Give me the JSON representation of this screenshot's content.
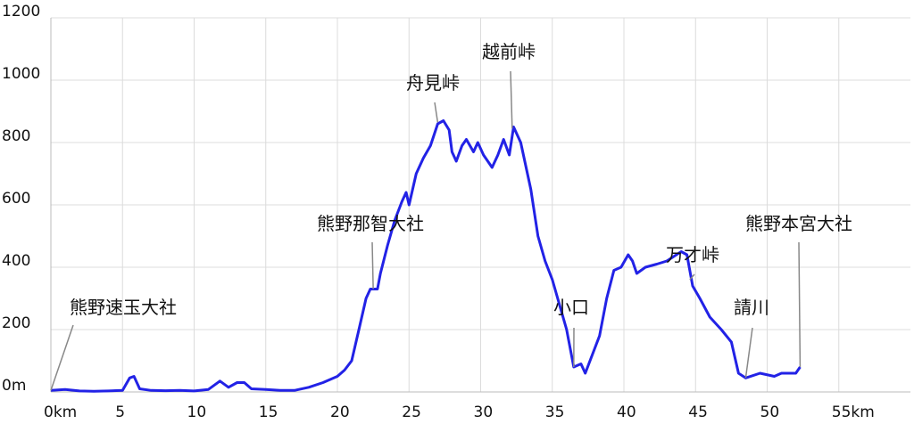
{
  "chart_data": {
    "type": "line",
    "x": [
      0,
      1,
      2,
      3,
      4,
      5,
      5.5,
      5.8,
      6.2,
      7,
      8,
      9,
      10,
      11,
      11.8,
      12.4,
      13,
      13.5,
      14,
      15,
      16,
      17,
      18,
      19,
      20,
      20.5,
      21,
      21.5,
      22,
      22.3,
      22.8,
      23,
      23.5,
      24,
      24.5,
      24.8,
      25,
      25.5,
      26,
      26.5,
      27,
      27.4,
      27.8,
      28,
      28.3,
      28.7,
      29,
      29.5,
      29.8,
      30.2,
      30.8,
      31.2,
      31.6,
      32,
      32.3,
      32.8,
      33.5,
      34,
      34.5,
      35,
      35.5,
      36,
      36.5,
      37,
      37.3,
      37.8,
      38.3,
      38.8,
      39.3,
      39.8,
      40.3,
      40.6,
      40.9,
      41.5,
      42.3,
      43,
      44,
      44.4,
      44.8,
      45.3,
      46,
      46.8,
      47.5,
      48,
      48.5,
      49.5,
      50.5,
      51,
      52,
      52.3
    ],
    "series": [
      {
        "color": "#2222e6",
        "values": [
          5,
          8,
          3,
          2,
          3,
          5,
          45,
          50,
          10,
          5,
          4,
          5,
          3,
          8,
          35,
          15,
          30,
          30,
          10,
          8,
          5,
          5,
          15,
          30,
          50,
          70,
          100,
          200,
          300,
          330,
          330,
          380,
          470,
          550,
          610,
          640,
          600,
          700,
          750,
          790,
          860,
          870,
          840,
          770,
          740,
          790,
          810,
          770,
          800,
          760,
          720,
          760,
          810,
          760,
          850,
          800,
          650,
          500,
          420,
          360,
          280,
          200,
          80,
          90,
          60,
          120,
          180,
          300,
          390,
          400,
          440,
          420,
          380,
          400,
          410,
          420,
          450,
          440,
          340,
          300,
          240,
          200,
          160,
          60,
          45,
          60,
          50,
          60,
          60,
          80
        ]
      }
    ],
    "xlim": [
      0,
      60
    ],
    "ylim": [
      0,
      1200
    ],
    "xticks": [
      {
        "value": 0,
        "label": "0km"
      },
      5,
      10,
      15,
      20,
      25,
      30,
      35,
      40,
      45,
      50,
      {
        "value": 55,
        "label": "55km"
      }
    ],
    "yticks": [
      {
        "value": 0,
        "label": "0m"
      },
      200,
      400,
      600,
      800,
      1000,
      1200
    ],
    "grid": true,
    "annotations": [
      {
        "text": "熊野速玉大社",
        "x": 0,
        "y": 5
      },
      {
        "text": "熊野那智大社",
        "x": 22.5,
        "y": 330
      },
      {
        "text": "舟見峠",
        "x": 27,
        "y": 865
      },
      {
        "text": "越前峠",
        "x": 32.2,
        "y": 845
      },
      {
        "text": "小口",
        "x": 36.5,
        "y": 80
      },
      {
        "text": "万才峠",
        "x": 44.6,
        "y": 360
      },
      {
        "text": "請川",
        "x": 48.5,
        "y": 45
      },
      {
        "text": "熊野本宮大社",
        "x": 52.3,
        "y": 80
      }
    ]
  }
}
